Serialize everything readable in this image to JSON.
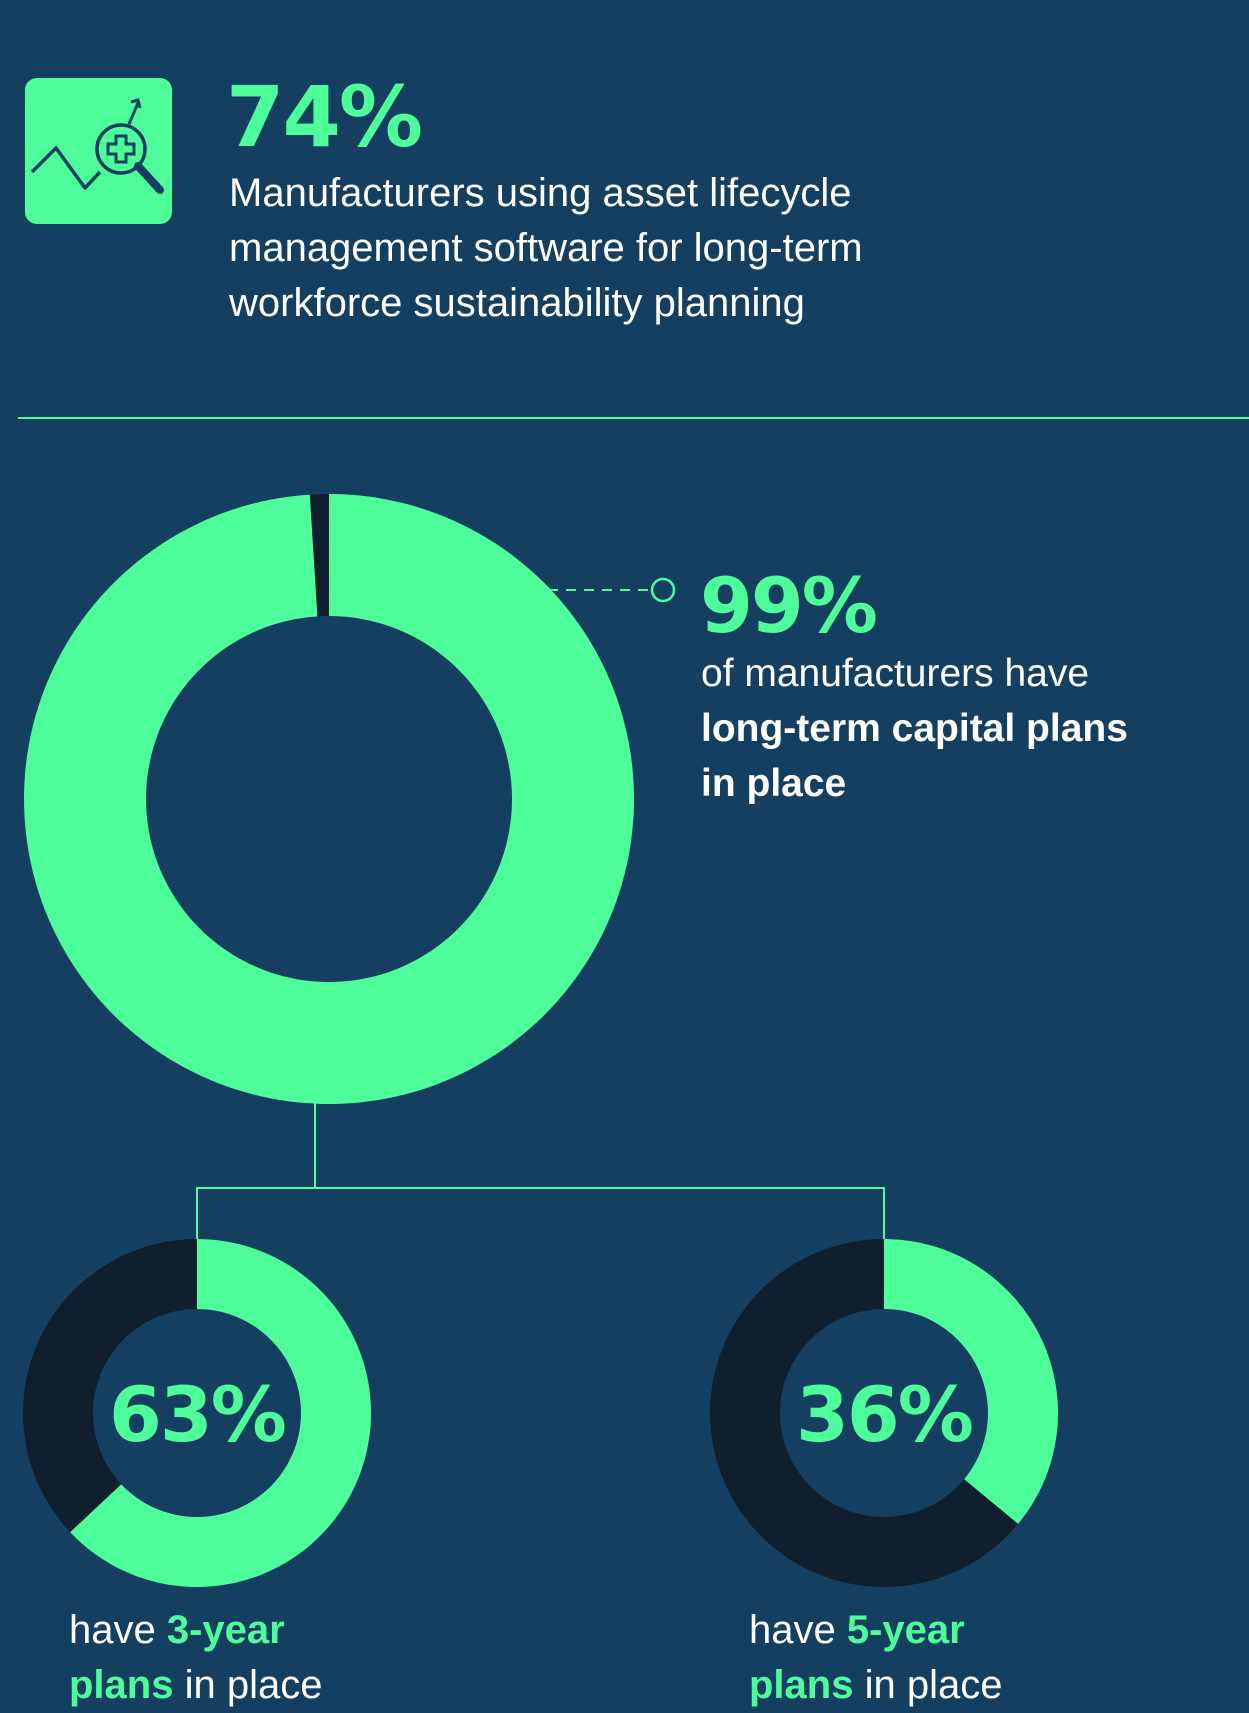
{
  "colors": {
    "background": "#143f61",
    "accent": "#4cfd9a",
    "dark": "#0f1f2e",
    "text": "#ffffff"
  },
  "header": {
    "icon": "trend-magnifier-health-icon",
    "stat": "74%",
    "description_lines": [
      "Manufacturers using asset lifecycle",
      "management software for long-term",
      "workforce sustainability planning"
    ]
  },
  "main_stat": {
    "value": "99%",
    "line1": "of manufacturers have",
    "bold_line2": "long-term capital plans",
    "bold_line3": "in place"
  },
  "sub_stats": [
    {
      "value": "63%",
      "pre": "have ",
      "bold1": "3-year",
      "bold2": "plans",
      "post": " in place"
    },
    {
      "value": "36%",
      "pre": "have ",
      "bold1": "5-year",
      "bold2": "plans",
      "post": " in place"
    }
  ],
  "chart_data": [
    {
      "type": "pie",
      "variant": "donut",
      "labels": [
        "Have long-term capital plans",
        "Other"
      ],
      "values": [
        99,
        1
      ]
    },
    {
      "type": "pie",
      "variant": "donut",
      "labels": [
        "Have 3-year plans",
        "Other"
      ],
      "values": [
        63,
        37
      ]
    },
    {
      "type": "pie",
      "variant": "donut",
      "labels": [
        "Have 5-year plans",
        "Other"
      ],
      "values": [
        36,
        64
      ]
    }
  ]
}
